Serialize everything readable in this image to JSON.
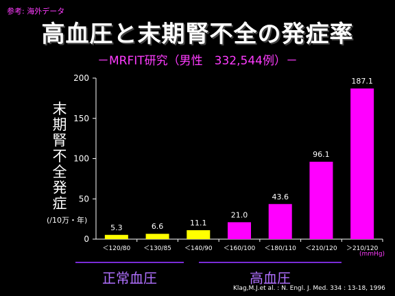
{
  "ref_note": "参考: 海外データ",
  "title": "高血圧と末期腎不全の発症率",
  "subtitle": "－MRFIT研究（男性　332,544例）－",
  "ylabel": "末期腎不全発症",
  "yunit": "(/10万・年)",
  "xunit": "(mmHg)",
  "groups": {
    "normal_label": "正常血圧",
    "high_label": "高血圧"
  },
  "source": "Klag,M.J.et al. : N. Engl. J. Med. 334 : 13-18, 1996",
  "colors": {
    "normal": "#ffff00",
    "high": "#ff00ff",
    "axis": "#ffffff",
    "accent": "#ff3cff",
    "group_line": "#7a2cd8"
  },
  "chart_data": {
    "type": "bar",
    "categories": [
      "＜120/80",
      "＜130/85",
      "＜140/90",
      "＜160/100",
      "＜180/110",
      "＜210/120",
      "＞210/120"
    ],
    "values": [
      5.3,
      6.6,
      11.1,
      21.0,
      43.6,
      96.1,
      187.1
    ],
    "value_labels": [
      "5.3",
      "6.6",
      "11.1",
      "21.0",
      "43.6",
      "96.1",
      "187.1"
    ],
    "group": [
      "normal",
      "normal",
      "normal",
      "high",
      "high",
      "high",
      "high"
    ],
    "ylim": [
      0,
      200
    ],
    "yticks": [
      0,
      50,
      100,
      150,
      200
    ],
    "ytick_labels": [
      "0",
      "50",
      "100",
      "150",
      "200"
    ],
    "grid": false
  }
}
